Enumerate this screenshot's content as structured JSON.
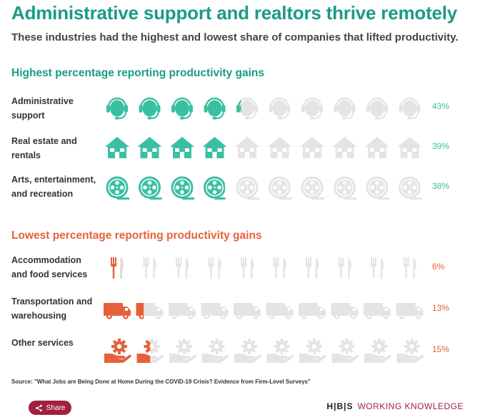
{
  "header": {
    "title": "Administrative support and realtors thrive remotely",
    "subtitle": "These industries had the highest and lowest share of companies that lifted productivity."
  },
  "sections": {
    "high_title": "Highest percentage reporting productivity gains",
    "low_title": "Lowest percentage reporting productivity gains"
  },
  "colors": {
    "teal": "#3bbfa3",
    "teal_dark": "#1a9b86",
    "orange": "#e5613b",
    "grey": "#e4e4e4"
  },
  "chart_data": {
    "type": "bar",
    "title": "Administrative support and realtors thrive remotely",
    "subtitle": "These industries had the highest and lowest share of companies that lifted productivity.",
    "unit": "percent of companies reporting productivity gains",
    "icons_per_row": 10,
    "each_icon_represents": 10,
    "highest": [
      {
        "label_lines": [
          "Administrative",
          "support"
        ],
        "value": 43,
        "value_label": "43%",
        "icon": "headset-icon"
      },
      {
        "label_lines": [
          "Real estate and",
          "rentals"
        ],
        "value": 39,
        "value_label": "39%",
        "icon": "house-icon"
      },
      {
        "label_lines": [
          "Arts, entertainment,",
          "and recreation"
        ],
        "value": 38,
        "value_label": "38%",
        "icon": "film-reel-icon"
      }
    ],
    "lowest": [
      {
        "label_lines": [
          "Accommodation",
          "and food services"
        ],
        "value": 6,
        "value_label": "6%",
        "icon": "fork-knife-icon"
      },
      {
        "label_lines": [
          "Transportation and",
          "warehousing"
        ],
        "value": 13,
        "value_label": "13%",
        "icon": "truck-icon"
      },
      {
        "label_lines": [
          "Other services"
        ],
        "value": 15,
        "value_label": "15%",
        "icon": "gear-hand-icon"
      }
    ]
  },
  "footer": {
    "source": "Source: \"What Jobs are Being Done at Home During the COVID-19 Crisis? Evidence from Firm-Level Surveys\"",
    "share_label": "Share",
    "brand_hbs": "H|B|S",
    "brand_name": "WORKING KNOWLEDGE"
  }
}
